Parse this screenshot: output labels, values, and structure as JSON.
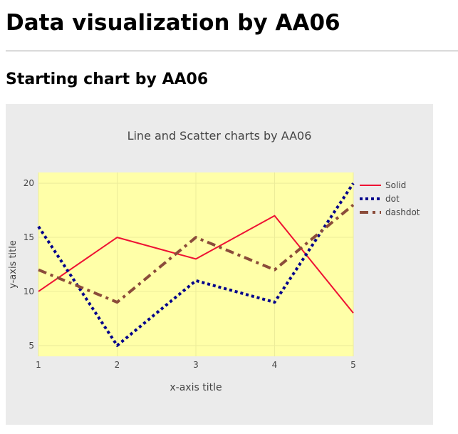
{
  "page": {
    "title": "Data visualization by AA06",
    "section_title": "Starting chart by AA06"
  },
  "chart_data": {
    "type": "line",
    "title": "Line and Scatter charts by AA06",
    "xlabel": "x-axis title",
    "ylabel": "y-axis title",
    "x": [
      1,
      2,
      3,
      4,
      5
    ],
    "xlim": [
      1,
      5
    ],
    "ylim": [
      4,
      21
    ],
    "xticks": [
      1,
      2,
      3,
      4,
      5
    ],
    "yticks": [
      5,
      10,
      15,
      20
    ],
    "grid": true,
    "legend_position": "top-right",
    "colors": {
      "paper_bg": "#ebebeb",
      "plot_bg": "#ffffa8",
      "grid": "#ecec9a"
    },
    "series": [
      {
        "name": "Solid",
        "values": [
          10,
          15,
          13,
          17,
          8
        ],
        "color": "#ee1133",
        "dash": "solid",
        "width": 2
      },
      {
        "name": "dot",
        "values": [
          16,
          5,
          11,
          9,
          20
        ],
        "color": "#00008b",
        "dash": "dot",
        "width": 4
      },
      {
        "name": "dashdot",
        "values": [
          12,
          9,
          15,
          12,
          18
        ],
        "color": "#8b4c3a",
        "dash": "dashdot",
        "width": 4
      }
    ]
  }
}
